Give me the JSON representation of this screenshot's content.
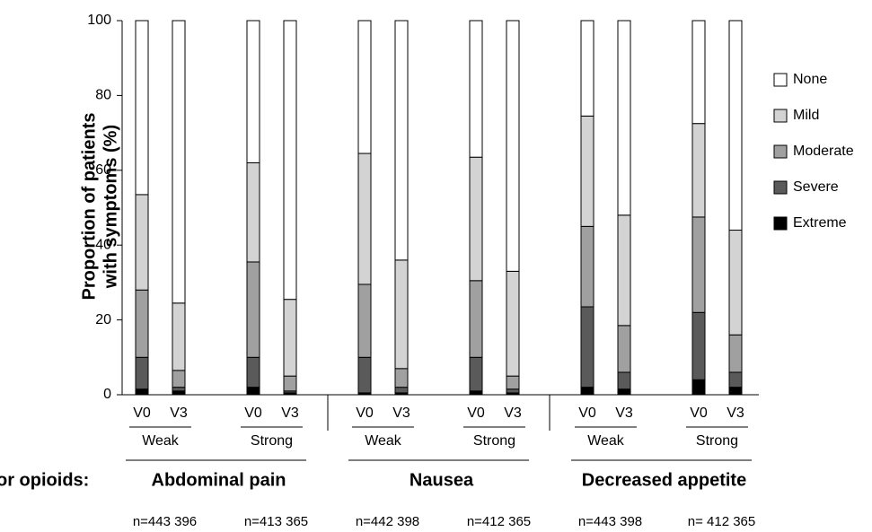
{
  "chart_data": {
    "type": "stacked_bar",
    "y_label_lines": [
      "Proportion of patients",
      "with symptoms (%)"
    ],
    "categories": [
      "V0",
      "V3",
      "V0",
      "V3",
      "V0",
      "V3",
      "V0",
      "V3",
      "V0",
      "V3",
      "V0",
      "V3"
    ],
    "subgroups": [
      "Weak",
      "Strong",
      "Weak",
      "Strong",
      "Weak",
      "Strong"
    ],
    "groups": [
      "Abdominal pain",
      "Nausea",
      "Decreased appetite"
    ],
    "groups_prefix": "or opioids:",
    "n_labels": [
      "n=443 396",
      "n=413 365",
      "n=442 398",
      "n=412 365",
      "n=443 398",
      "n= 412 365"
    ],
    "series": [
      {
        "name": "None",
        "color": "#ffffff",
        "values": [
          46.5,
          75.5,
          38,
          74.5,
          35.5,
          64,
          36.5,
          67,
          25.5,
          52,
          27.5,
          56
        ]
      },
      {
        "name": "Mild",
        "color": "#d3d3d3",
        "values": [
          25.5,
          18,
          26.5,
          20.5,
          35,
          29,
          33,
          28,
          29.5,
          29.5,
          25,
          28
        ]
      },
      {
        "name": "Moderate",
        "color": "#a0a0a0",
        "values": [
          18,
          4.5,
          25.5,
          4,
          19.5,
          5,
          20.5,
          3.5,
          21.5,
          12.5,
          25.5,
          10
        ]
      },
      {
        "name": "Severe",
        "color": "#5a5a5a",
        "values": [
          8.5,
          1,
          8,
          0.5,
          9.5,
          1.5,
          9,
          1,
          21.5,
          4.5,
          18,
          4
        ]
      },
      {
        "name": "Extreme",
        "color": "#000000",
        "values": [
          1.5,
          1,
          2,
          0.5,
          0.5,
          0.5,
          1,
          0.5,
          2,
          1.5,
          4,
          2
        ]
      }
    ],
    "ylim": [
      0,
      100
    ],
    "yticks": [
      0,
      20,
      40,
      60,
      80,
      100
    ]
  }
}
